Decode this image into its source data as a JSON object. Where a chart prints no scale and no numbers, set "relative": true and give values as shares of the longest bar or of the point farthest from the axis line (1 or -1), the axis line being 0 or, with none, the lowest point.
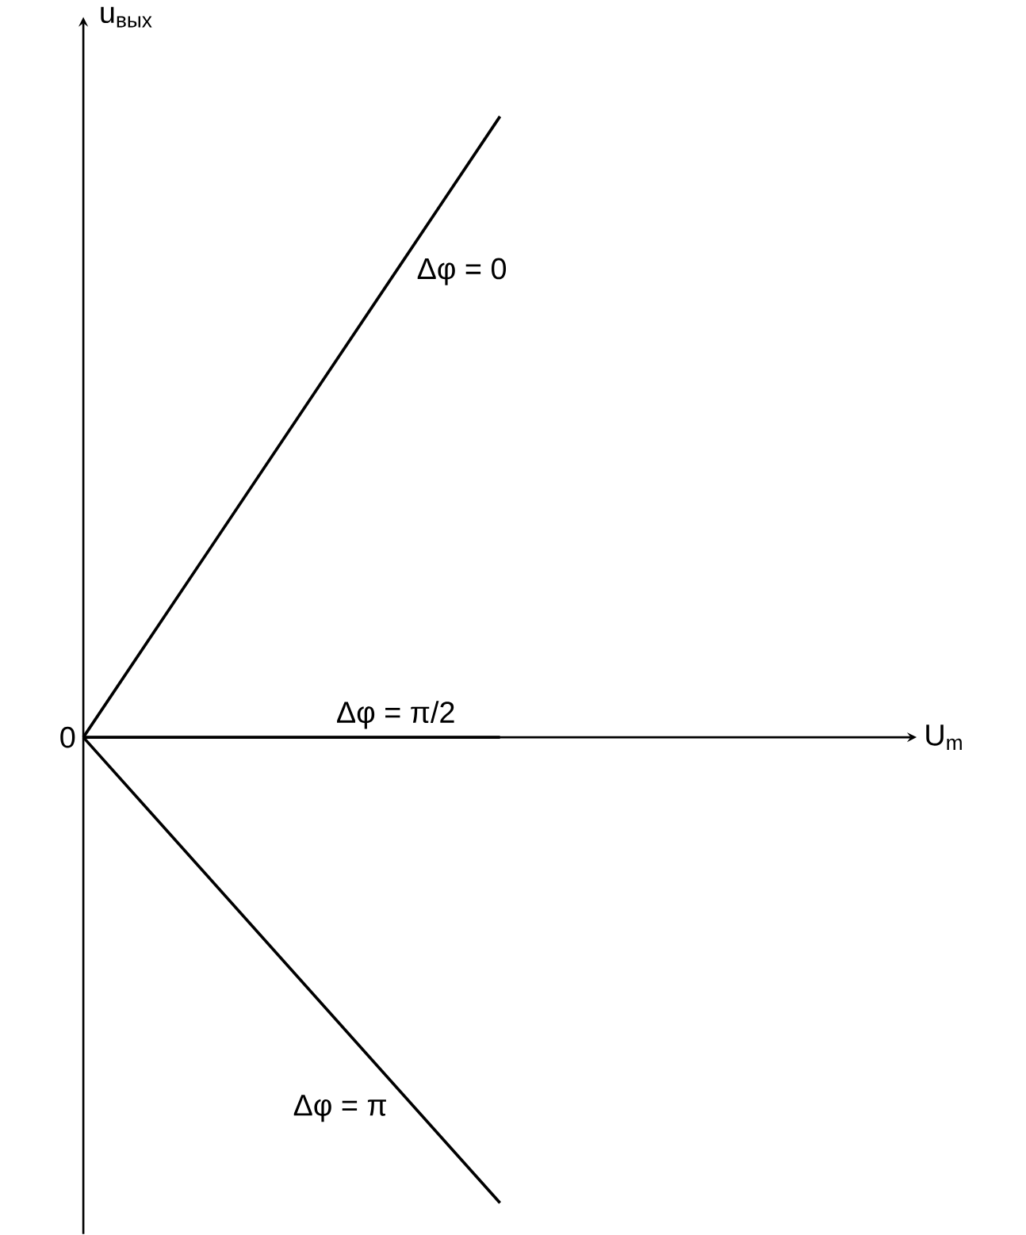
{
  "chart_data": {
    "type": "line",
    "relative": true,
    "xlabel": "U$_{m}$",
    "ylabel": "u$_{вых}$",
    "annotations": [
      "0"
    ],
    "categories": [
      null,
      null
    ],
    "series": [
      {
        "name": "Δφ = 0",
        "color": "#000000",
        "values": [
          0,
          1
        ]
      },
      {
        "name": "Δφ = π/2",
        "color": "#000000",
        "values": [
          0,
          0
        ]
      },
      {
        "name": "Δφ = π",
        "color": "#000000",
        "values": [
          0,
          -0.75
        ]
      }
    ]
  }
}
